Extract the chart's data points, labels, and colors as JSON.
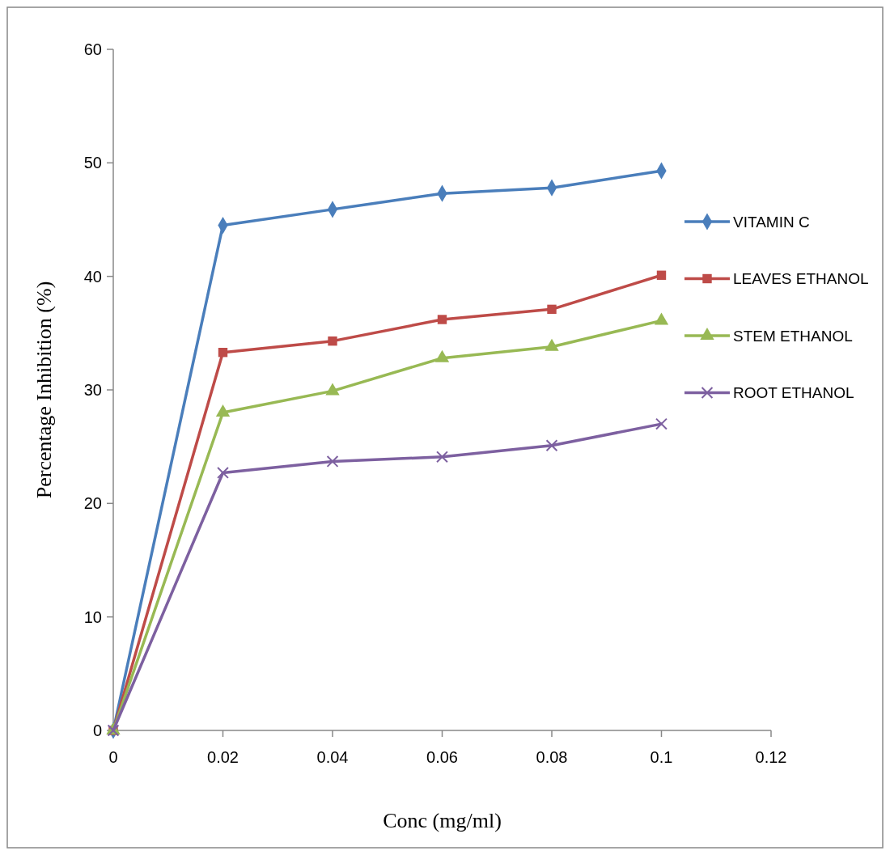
{
  "chart_data": {
    "type": "line",
    "xlabel": "Conc (mg/ml)",
    "ylabel": "Percentage Inhibition (%)",
    "x": [
      0,
      0.02,
      0.04,
      0.06,
      0.08,
      0.1
    ],
    "xlim": [
      0,
      0.12
    ],
    "xticks": [
      0,
      0.02,
      0.04,
      0.06,
      0.08,
      0.1,
      0.12
    ],
    "ylim": [
      0,
      60
    ],
    "yticks": [
      0,
      10,
      20,
      30,
      40,
      50,
      60
    ],
    "grid": false,
    "legend": "right",
    "line_style": "solid",
    "series": [
      {
        "name": "VITAMIN C",
        "color": "#4a7ebb",
        "marker": "diamond",
        "values": [
          0,
          44.5,
          45.9,
          47.3,
          47.8,
          49.3
        ]
      },
      {
        "name": "LEAVES ETHANOL",
        "color": "#be4b48",
        "marker": "square",
        "values": [
          0,
          33.3,
          34.3,
          36.2,
          37.1,
          40.1
        ]
      },
      {
        "name": "STEM ETHANOL",
        "color": "#98b954",
        "marker": "triangle",
        "values": [
          0,
          28.0,
          29.9,
          32.8,
          33.8,
          36.1
        ]
      },
      {
        "name": "ROOT ETHANOL",
        "color": "#7d60a0",
        "marker": "cross",
        "values": [
          0,
          22.7,
          23.7,
          24.1,
          25.1,
          27.0
        ]
      }
    ]
  }
}
